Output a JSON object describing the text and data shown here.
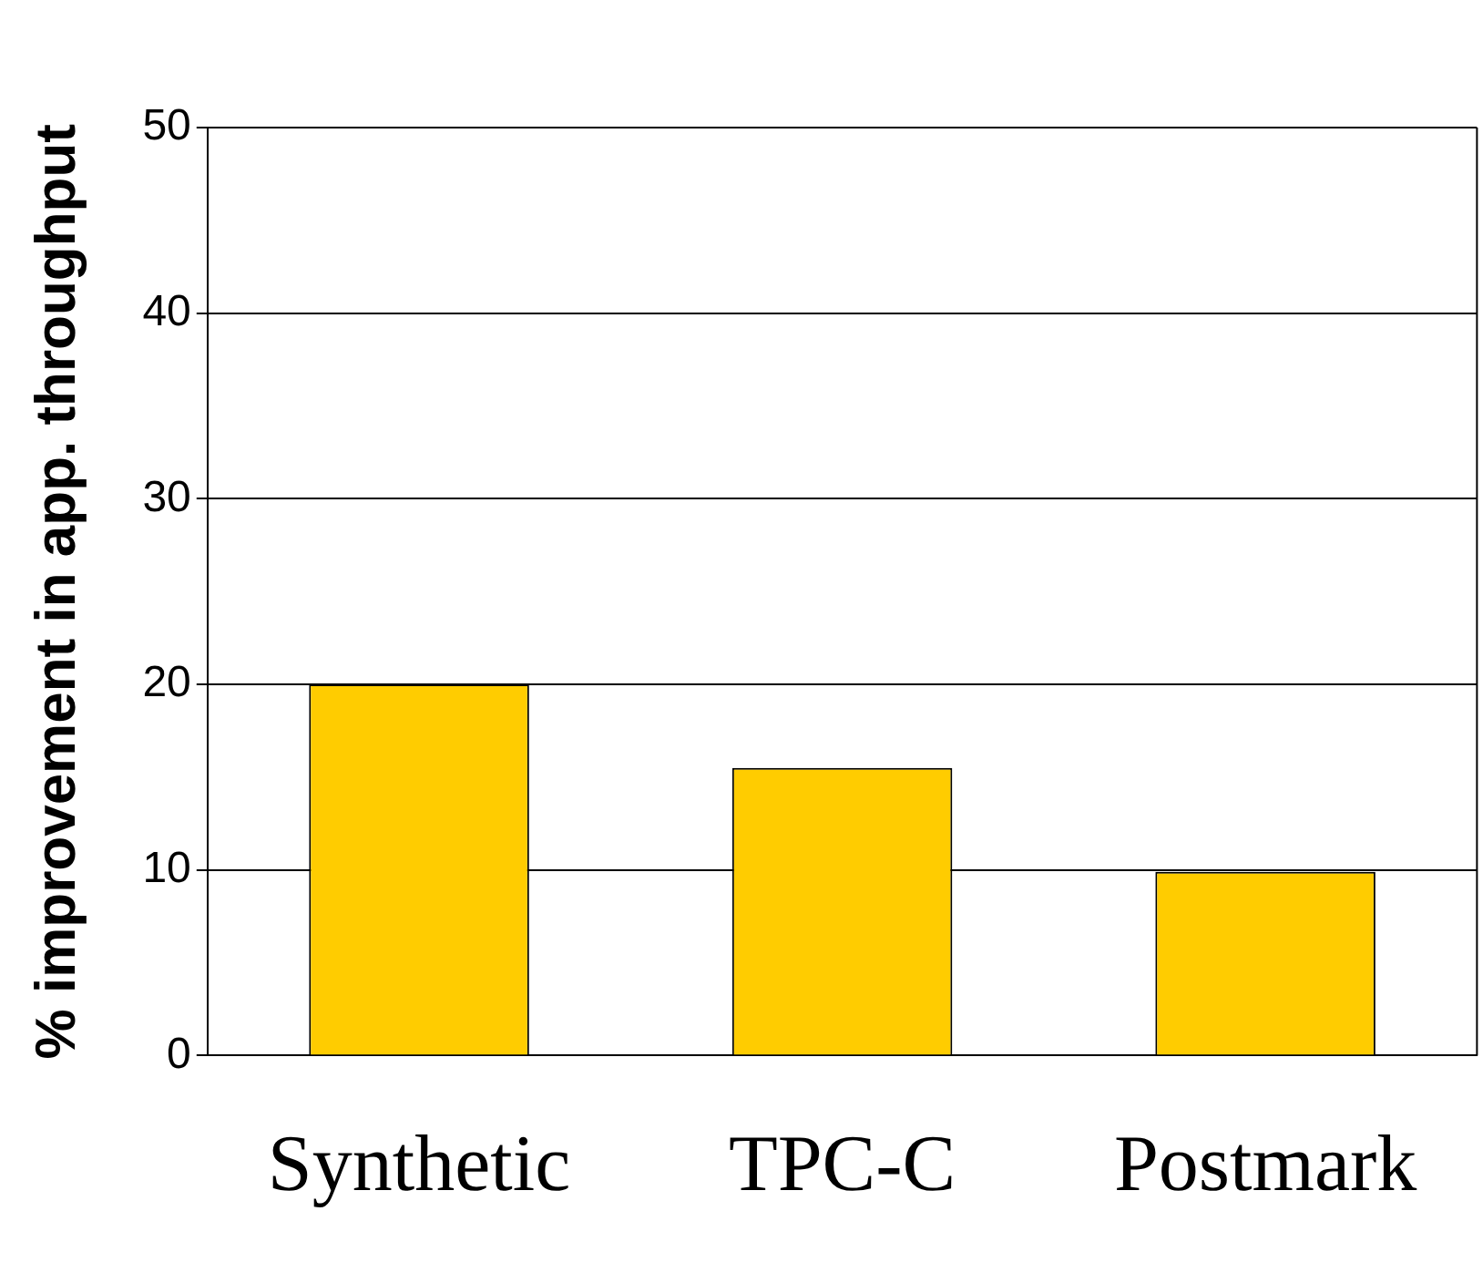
{
  "chart_data": {
    "type": "bar",
    "ylabel": "% improvement in app. throughput",
    "categories": [
      "Synthetic",
      "TPC-C",
      "Postmark"
    ],
    "values": [
      20,
      15.5,
      9.9
    ],
    "color": "#ffcc00",
    "ylim": [
      0,
      50
    ],
    "yticks": [
      0,
      10,
      20,
      30,
      40,
      50
    ],
    "grid": "y",
    "legend": false
  }
}
